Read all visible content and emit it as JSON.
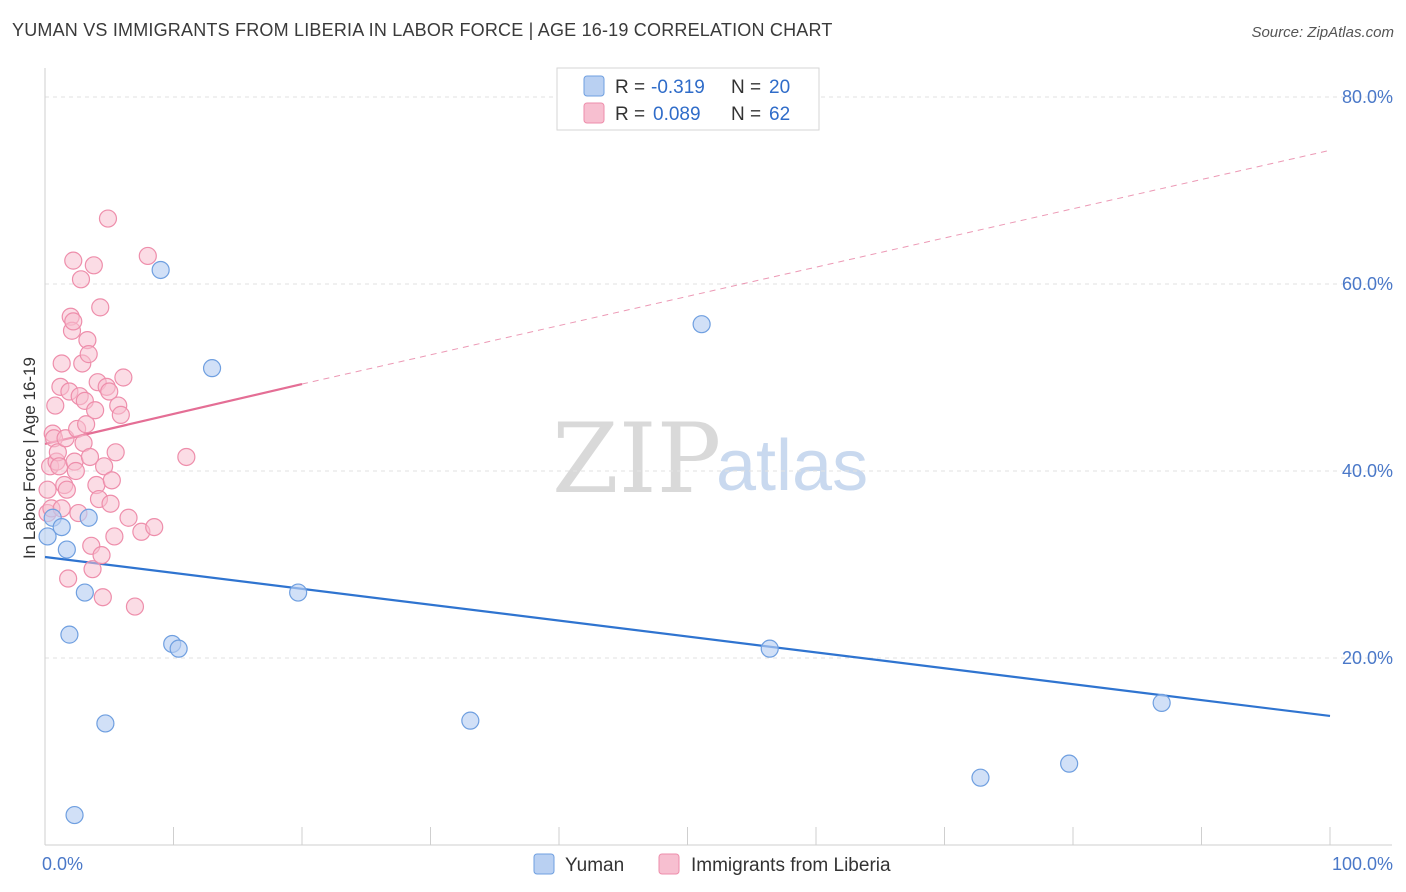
{
  "title": "YUMAN VS IMMIGRANTS FROM LIBERIA IN LABOR FORCE | AGE 16-19 CORRELATION CHART",
  "source": "Source: ZipAtlas.com",
  "watermark": {
    "zip": "ZIP",
    "atlas": "atlas"
  },
  "colors": {
    "blue_fill": "#b9d0f2",
    "blue_stroke": "#6f9fe0",
    "blue_line": "#2f74d0",
    "pink_fill": "#f7bfd0",
    "pink_stroke": "#ee8eab",
    "pink_line": "#e46e95",
    "grid": "#e2e2e2",
    "tick_label": "#4a78c8"
  },
  "legend": {
    "rows": [
      {
        "r_label": "R = ",
        "r_value": "-0.319",
        "n_label": "N = ",
        "n_value": "20"
      },
      {
        "r_label": "R = ",
        "r_value": "0.089",
        "n_label": "N = ",
        "n_value": "62"
      }
    ]
  },
  "bottom_legend": [
    "Yuman",
    "Immigrants from Liberia"
  ],
  "chart_data": {
    "type": "scatter",
    "title": "YUMAN VS IMMIGRANTS FROM LIBERIA IN LABOR FORCE | AGE 16-19 CORRELATION CHART",
    "xlabel": "",
    "ylabel": "In Labor Force | Age 16-19",
    "xlim": [
      0,
      100
    ],
    "ylim": [
      0,
      80
    ],
    "x_tick_labels": [
      "0.0%",
      "100.0%"
    ],
    "y_ticks": [
      20,
      40,
      60,
      80
    ],
    "y_tick_labels": [
      "20.0%",
      "40.0%",
      "60.0%",
      "80.0%"
    ],
    "grid": true,
    "legend_position": "top-center",
    "series": [
      {
        "name": "Yuman",
        "R": -0.319,
        "N": 20,
        "points": [
          [
            0.2,
            33.0
          ],
          [
            0.6,
            35.0
          ],
          [
            1.3,
            34.0
          ],
          [
            1.7,
            31.6
          ],
          [
            1.9,
            22.5
          ],
          [
            2.3,
            3.2
          ],
          [
            3.1,
            27.0
          ],
          [
            3.4,
            35.0
          ],
          [
            4.7,
            13.0
          ],
          [
            9.0,
            61.5
          ],
          [
            9.9,
            21.5
          ],
          [
            10.4,
            21.0
          ],
          [
            13.0,
            51.0
          ],
          [
            19.7,
            27.0
          ],
          [
            33.1,
            13.3
          ],
          [
            51.1,
            55.7
          ],
          [
            56.4,
            21.0
          ],
          [
            72.8,
            7.2
          ],
          [
            79.7,
            8.7
          ],
          [
            86.9,
            15.2
          ]
        ],
        "trend": {
          "x_start": 0,
          "y_start": 30.8,
          "x_end": 100,
          "y_end": 13.8,
          "style": "solid"
        }
      },
      {
        "name": "Immigrants from Liberia",
        "R": 0.089,
        "N": 62,
        "points": [
          [
            0.2,
            38.0
          ],
          [
            0.2,
            35.5
          ],
          [
            0.4,
            40.5
          ],
          [
            0.5,
            36.0
          ],
          [
            0.6,
            44.0
          ],
          [
            0.7,
            43.5
          ],
          [
            0.8,
            47.0
          ],
          [
            0.9,
            41.0
          ],
          [
            1.0,
            42.0
          ],
          [
            1.1,
            40.5
          ],
          [
            1.2,
            49.0
          ],
          [
            1.3,
            51.5
          ],
          [
            1.3,
            36.0
          ],
          [
            1.5,
            38.5
          ],
          [
            1.6,
            43.5
          ],
          [
            1.7,
            38.0
          ],
          [
            1.8,
            28.5
          ],
          [
            1.9,
            48.5
          ],
          [
            2.0,
            56.5
          ],
          [
            2.1,
            55.0
          ],
          [
            2.2,
            56.0
          ],
          [
            2.2,
            62.5
          ],
          [
            2.3,
            41.0
          ],
          [
            2.4,
            40.0
          ],
          [
            2.5,
            44.5
          ],
          [
            2.6,
            35.5
          ],
          [
            2.7,
            48.0
          ],
          [
            2.8,
            60.5
          ],
          [
            2.9,
            51.5
          ],
          [
            3.0,
            43.0
          ],
          [
            3.1,
            47.5
          ],
          [
            3.2,
            45.0
          ],
          [
            3.3,
            54.0
          ],
          [
            3.4,
            52.5
          ],
          [
            3.5,
            41.5
          ],
          [
            3.6,
            32.0
          ],
          [
            3.7,
            29.5
          ],
          [
            3.8,
            62.0
          ],
          [
            3.9,
            46.5
          ],
          [
            4.0,
            38.5
          ],
          [
            4.1,
            49.5
          ],
          [
            4.2,
            37.0
          ],
          [
            4.3,
            57.5
          ],
          [
            4.4,
            31.0
          ],
          [
            4.5,
            26.5
          ],
          [
            4.6,
            40.5
          ],
          [
            4.8,
            49.0
          ],
          [
            4.9,
            67.0
          ],
          [
            5.0,
            48.5
          ],
          [
            5.1,
            36.5
          ],
          [
            5.2,
            39.0
          ],
          [
            5.4,
            33.0
          ],
          [
            5.5,
            42.0
          ],
          [
            5.7,
            47.0
          ],
          [
            5.9,
            46.0
          ],
          [
            6.1,
            50.0
          ],
          [
            6.5,
            35.0
          ],
          [
            7.0,
            25.5
          ],
          [
            7.5,
            33.5
          ],
          [
            8.0,
            63.0
          ],
          [
            8.5,
            34.0
          ],
          [
            11.0,
            41.5
          ]
        ],
        "trend_solid": {
          "x_start": 0,
          "y_start": 42.9,
          "x_end": 20,
          "y_end": 49.3
        },
        "trend_dashed": {
          "x_start": 20,
          "y_start": 49.3,
          "x_end": 100,
          "y_end": 74.3
        }
      }
    ]
  }
}
